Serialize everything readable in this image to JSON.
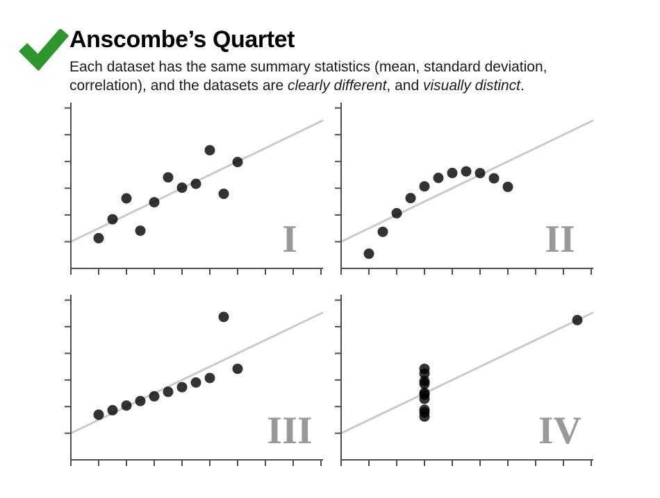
{
  "header": {
    "checkmark_color": "#2d962d",
    "title": "Anscombe’s Quartet",
    "subtitle_lines": [
      [
        {
          "t": "Each dataset has the same summary statistics (mean, standard deviation,",
          "i": false
        }
      ],
      [
        {
          "t": "correlation), and the datasets are ",
          "i": false
        },
        {
          "t": "clearly different",
          "i": true
        },
        {
          "t": ", and ",
          "i": false
        },
        {
          "t": "visually distinct",
          "i": true
        },
        {
          "t": ".",
          "i": false
        }
      ]
    ]
  },
  "colors": {
    "point": "#000000",
    "point_opacity": 0.8,
    "trend": "#c9c9c9",
    "axis": "#4d4d4d",
    "plot_label": "#999999"
  },
  "chart_data": [
    {
      "type": "scatter",
      "label": "I",
      "x": [
        10,
        8,
        13,
        9,
        11,
        14,
        6,
        4,
        12,
        7,
        5
      ],
      "y": [
        8.04,
        6.95,
        7.58,
        8.81,
        8.33,
        9.96,
        7.24,
        4.26,
        10.84,
        4.82,
        5.68
      ],
      "trendline": {
        "slope": 0.5,
        "intercept": 3.0
      },
      "xlim": [
        2,
        20.15
      ],
      "ylim": [
        2,
        14.4
      ],
      "xticks": [
        2,
        4,
        6,
        8,
        10,
        12,
        14,
        16,
        18,
        20
      ],
      "yticks": [
        4,
        6,
        8,
        10,
        12,
        14
      ],
      "grid": false,
      "axis_labels_visible": false
    },
    {
      "type": "scatter",
      "label": "II",
      "x": [
        10,
        8,
        13,
        9,
        11,
        14,
        6,
        4,
        12,
        7,
        5
      ],
      "y": [
        9.14,
        8.14,
        8.74,
        8.77,
        9.26,
        8.1,
        6.13,
        3.1,
        9.13,
        7.26,
        4.74
      ],
      "trendline": {
        "slope": 0.5,
        "intercept": 3.0
      },
      "xlim": [
        2,
        20.15
      ],
      "ylim": [
        2,
        14.4
      ],
      "xticks": [
        2,
        4,
        6,
        8,
        10,
        12,
        14,
        16,
        18,
        20
      ],
      "yticks": [
        4,
        6,
        8,
        10,
        12,
        14
      ],
      "grid": false,
      "axis_labels_visible": false
    },
    {
      "type": "scatter",
      "label": "III",
      "x": [
        10,
        8,
        13,
        9,
        11,
        14,
        6,
        4,
        12,
        7,
        5
      ],
      "y": [
        7.46,
        6.77,
        12.74,
        7.11,
        7.81,
        8.84,
        6.08,
        5.39,
        8.15,
        6.42,
        5.73
      ],
      "trendline": {
        "slope": 0.5,
        "intercept": 3.0
      },
      "xlim": [
        2,
        20.15
      ],
      "ylim": [
        2,
        14.4
      ],
      "xticks": [
        2,
        4,
        6,
        8,
        10,
        12,
        14,
        16,
        18,
        20
      ],
      "yticks": [
        4,
        6,
        8,
        10,
        12,
        14
      ],
      "grid": false,
      "axis_labels_visible": false
    },
    {
      "type": "scatter",
      "label": "IV",
      "x": [
        8,
        8,
        8,
        8,
        8,
        8,
        8,
        19,
        8,
        8,
        8
      ],
      "y": [
        6.58,
        5.76,
        7.71,
        8.84,
        8.47,
        7.04,
        5.25,
        12.5,
        5.56,
        7.91,
        6.89
      ],
      "trendline": {
        "slope": 0.5,
        "intercept": 3.0
      },
      "xlim": [
        2,
        20.15
      ],
      "ylim": [
        2,
        14.4
      ],
      "xticks": [
        2,
        4,
        6,
        8,
        10,
        12,
        14,
        16,
        18,
        20
      ],
      "yticks": [
        4,
        6,
        8,
        10,
        12,
        14
      ],
      "grid": false,
      "axis_labels_visible": false
    }
  ]
}
